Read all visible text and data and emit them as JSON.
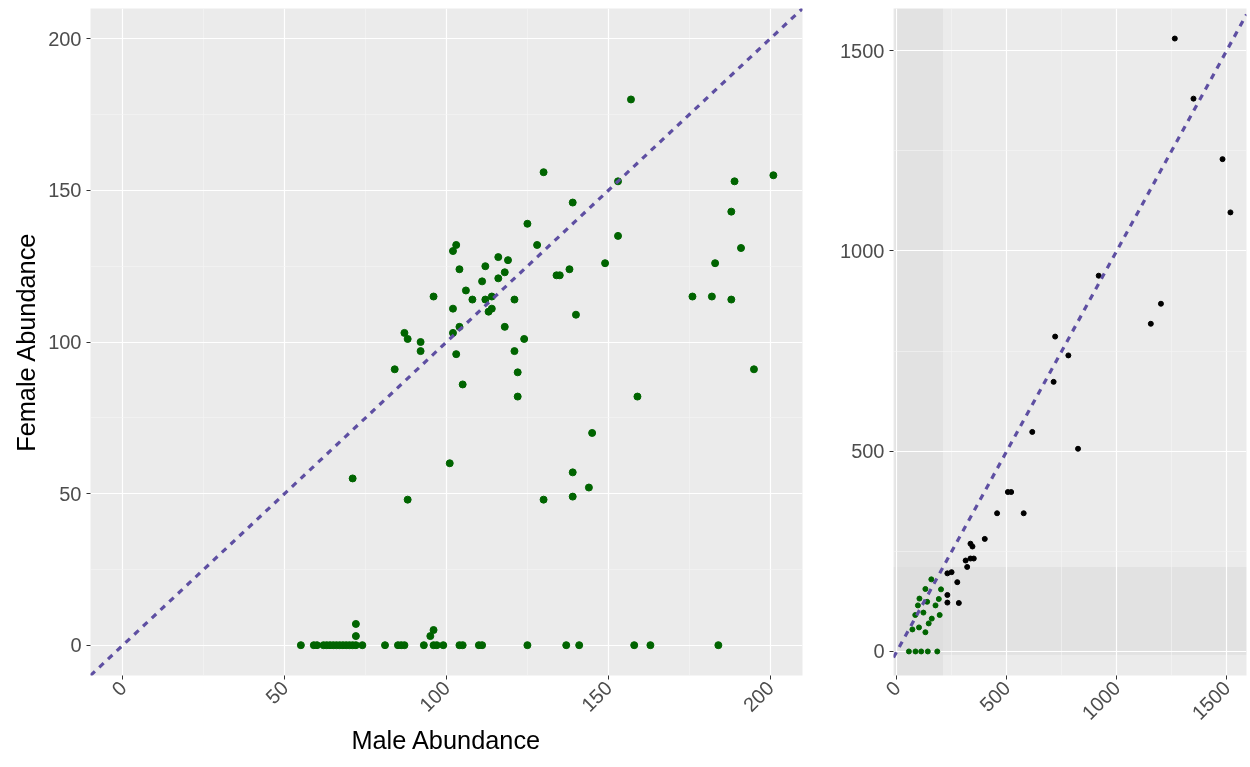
{
  "chart_data": [
    {
      "type": "scatter",
      "xlabel": "Male Abundance",
      "ylabel": "Female Abundance",
      "xlim": [
        -10,
        210
      ],
      "ylim": [
        -10,
        210
      ],
      "xticks": [
        0,
        50,
        100,
        150,
        200
      ],
      "yticks": [
        0,
        50,
        100,
        150,
        200
      ],
      "grid": true,
      "marker": "circle",
      "series": [
        {
          "color": "#006400",
          "x": [
            157,
            130,
            201,
            189,
            153,
            188,
            139,
            125,
            153,
            128,
            103,
            102,
            191,
            149,
            183,
            116,
            119,
            112,
            104,
            118,
            134,
            135,
            138,
            111,
            116,
            106,
            96,
            108,
            112,
            114,
            121,
            176,
            182,
            188,
            102,
            114,
            113,
            140,
            104,
            118,
            102,
            124,
            87,
            88,
            92,
            92,
            103,
            121,
            84,
            122,
            105,
            122,
            159,
            195,
            145,
            101,
            71,
            88,
            130,
            139,
            139,
            144,
            72,
            72,
            95,
            96,
            55,
            59,
            60,
            62,
            63,
            64,
            65,
            66,
            67,
            68,
            69,
            70,
            71,
            72,
            74,
            81,
            85,
            86,
            87,
            93,
            96,
            97,
            99,
            104,
            105,
            110,
            111,
            125,
            137,
            141,
            158,
            163,
            184
          ],
          "values": [
            180,
            156,
            155,
            153,
            153,
            143,
            146,
            139,
            135,
            132,
            132,
            130,
            131,
            126,
            126,
            128,
            127,
            125,
            124,
            123,
            122,
            122,
            124,
            120,
            121,
            117,
            115,
            114,
            114,
            115,
            114,
            115,
            115,
            114,
            111,
            111,
            110,
            109,
            105,
            105,
            103,
            101,
            103,
            101,
            100,
            97,
            96,
            97,
            91,
            90,
            86,
            82,
            82,
            91,
            70,
            60,
            55,
            48,
            48,
            57,
            49,
            52,
            7,
            3,
            3,
            5,
            0,
            0,
            0,
            0,
            0,
            0,
            0,
            0,
            0,
            0,
            0,
            0,
            0,
            0,
            0,
            0,
            0,
            0,
            0,
            0,
            0,
            0,
            0,
            0,
            0,
            0,
            0,
            0,
            0,
            0,
            0,
            0,
            0
          ]
        },
        {
          "type": "line",
          "marker": "none",
          "color": "#5e4fa2",
          "line_style": "dashed",
          "x": [
            -10,
            210
          ],
          "values": [
            -10,
            210
          ]
        }
      ]
    },
    {
      "type": "scatter",
      "xlim": [
        -15,
        1590
      ],
      "ylim": [
        -60,
        1605
      ],
      "xticks": [
        0,
        500,
        1000,
        1500
      ],
      "yticks": [
        0,
        500,
        1000,
        1500
      ],
      "grid": true,
      "marker": "circle",
      "bands": [
        {
          "axis": "x",
          "from": -10,
          "to": 210,
          "color": "#d9d9d9"
        },
        {
          "axis": "y",
          "from": -8,
          "to": 211,
          "color": "#d9d9d9"
        }
      ],
      "series": [
        {
          "color": "#000000",
          "x": [
            1264,
            1349,
            1481,
            1517,
            918,
            1201,
            1155,
            720,
            780,
            713,
            616,
            824,
            505,
            520,
            456,
            577,
            400,
            335,
            344,
            313,
            335,
            350,
            320,
            230,
            249,
            275,
            230,
            230,
            282
          ],
          "values": [
            1530,
            1380,
            1229,
            1096,
            938,
            868,
            818,
            786,
            739,
            673,
            548,
            506,
            398,
            398,
            345,
            345,
            281,
            269,
            262,
            227,
            232,
            232,
            211,
            195,
            198,
            173,
            141,
            122,
            121
          ]
        },
        {
          "color": "#006400",
          "x": [
            157,
            130,
            201,
            191,
            103,
            138,
            176,
            96,
            121,
            84,
            195,
            159,
            145,
            101,
            71,
            130,
            55,
            85,
            111,
            141,
            184
          ],
          "values": [
            180,
            156,
            155,
            131,
            132,
            124,
            115,
            115,
            97,
            91,
            91,
            82,
            70,
            60,
            55,
            48,
            0,
            0,
            0,
            0,
            0
          ]
        },
        {
          "type": "line",
          "marker": "none",
          "color": "#5e4fa2",
          "line_style": "dashed",
          "x": [
            -15,
            1590
          ],
          "values": [
            -15,
            1590
          ]
        }
      ]
    }
  ]
}
